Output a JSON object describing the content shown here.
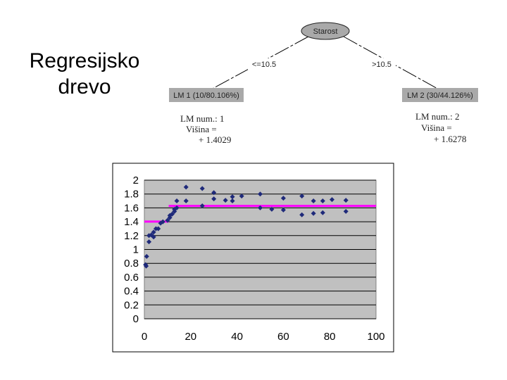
{
  "slide_title": [
    "Regresijsko",
    "drevo"
  ],
  "tree": {
    "root": "Starost",
    "left_edge": "<=10.5",
    "right_edge": ">10.5",
    "left_leaf": "LM 1 (10/80.106%)",
    "right_leaf": "LM 2 (30/44.126%)",
    "left_model": [
      "LM num.: 1",
      "Višina =",
      "+ 1.4029"
    ],
    "right_model": [
      "LM num.: 2",
      "Višina =",
      "+ 1.6278"
    ]
  },
  "chart_data": {
    "type": "scatter",
    "title": "",
    "xlabel": "",
    "ylabel": "",
    "xlim": [
      0,
      100
    ],
    "ylim": [
      0,
      2
    ],
    "xticks": [
      "0",
      "20",
      "40",
      "60",
      "80",
      "100"
    ],
    "yticks": [
      "0",
      "0.2",
      "0.4",
      "0.6",
      "0.8",
      "1",
      "1.2",
      "1.4",
      "1.6",
      "1.8",
      "2"
    ],
    "grid": true,
    "legend": "none",
    "plot_bg": "#c0c0c0",
    "point_color": "#1f2a7a",
    "line_color": "#ff00ff",
    "points": [
      [
        0.5,
        0.78
      ],
      [
        0.8,
        0.76
      ],
      [
        1,
        0.9
      ],
      [
        2,
        1.11
      ],
      [
        2,
        1.2
      ],
      [
        3,
        1.21
      ],
      [
        4,
        1.18
      ],
      [
        4,
        1.25
      ],
      [
        5,
        1.3
      ],
      [
        6,
        1.3
      ],
      [
        7,
        1.38
      ],
      [
        8,
        1.4
      ],
      [
        10,
        1.42
      ],
      [
        11,
        1.49
      ],
      [
        11,
        1.46
      ],
      [
        12,
        1.51
      ],
      [
        13,
        1.55
      ],
      [
        13,
        1.58
      ],
      [
        14,
        1.6
      ],
      [
        14,
        1.7
      ],
      [
        18,
        1.9
      ],
      [
        18,
        1.7
      ],
      [
        25,
        1.88
      ],
      [
        25,
        1.63
      ],
      [
        30,
        1.82
      ],
      [
        30,
        1.73
      ],
      [
        35,
        1.71
      ],
      [
        38,
        1.76
      ],
      [
        38,
        1.7
      ],
      [
        42,
        1.77
      ],
      [
        50,
        1.8
      ],
      [
        50,
        1.6
      ],
      [
        55,
        1.58
      ],
      [
        60,
        1.74
      ],
      [
        60,
        1.57
      ],
      [
        68,
        1.77
      ],
      [
        68,
        1.5
      ],
      [
        73,
        1.7
      ],
      [
        73,
        1.52
      ],
      [
        77,
        1.7
      ],
      [
        77,
        1.53
      ],
      [
        81,
        1.72
      ],
      [
        87,
        1.71
      ],
      [
        87,
        1.55
      ]
    ],
    "segments": [
      {
        "x": [
          0,
          10.5
        ],
        "y": 1.4029
      },
      {
        "x": [
          10.5,
          100
        ],
        "y": 1.6278
      }
    ]
  }
}
